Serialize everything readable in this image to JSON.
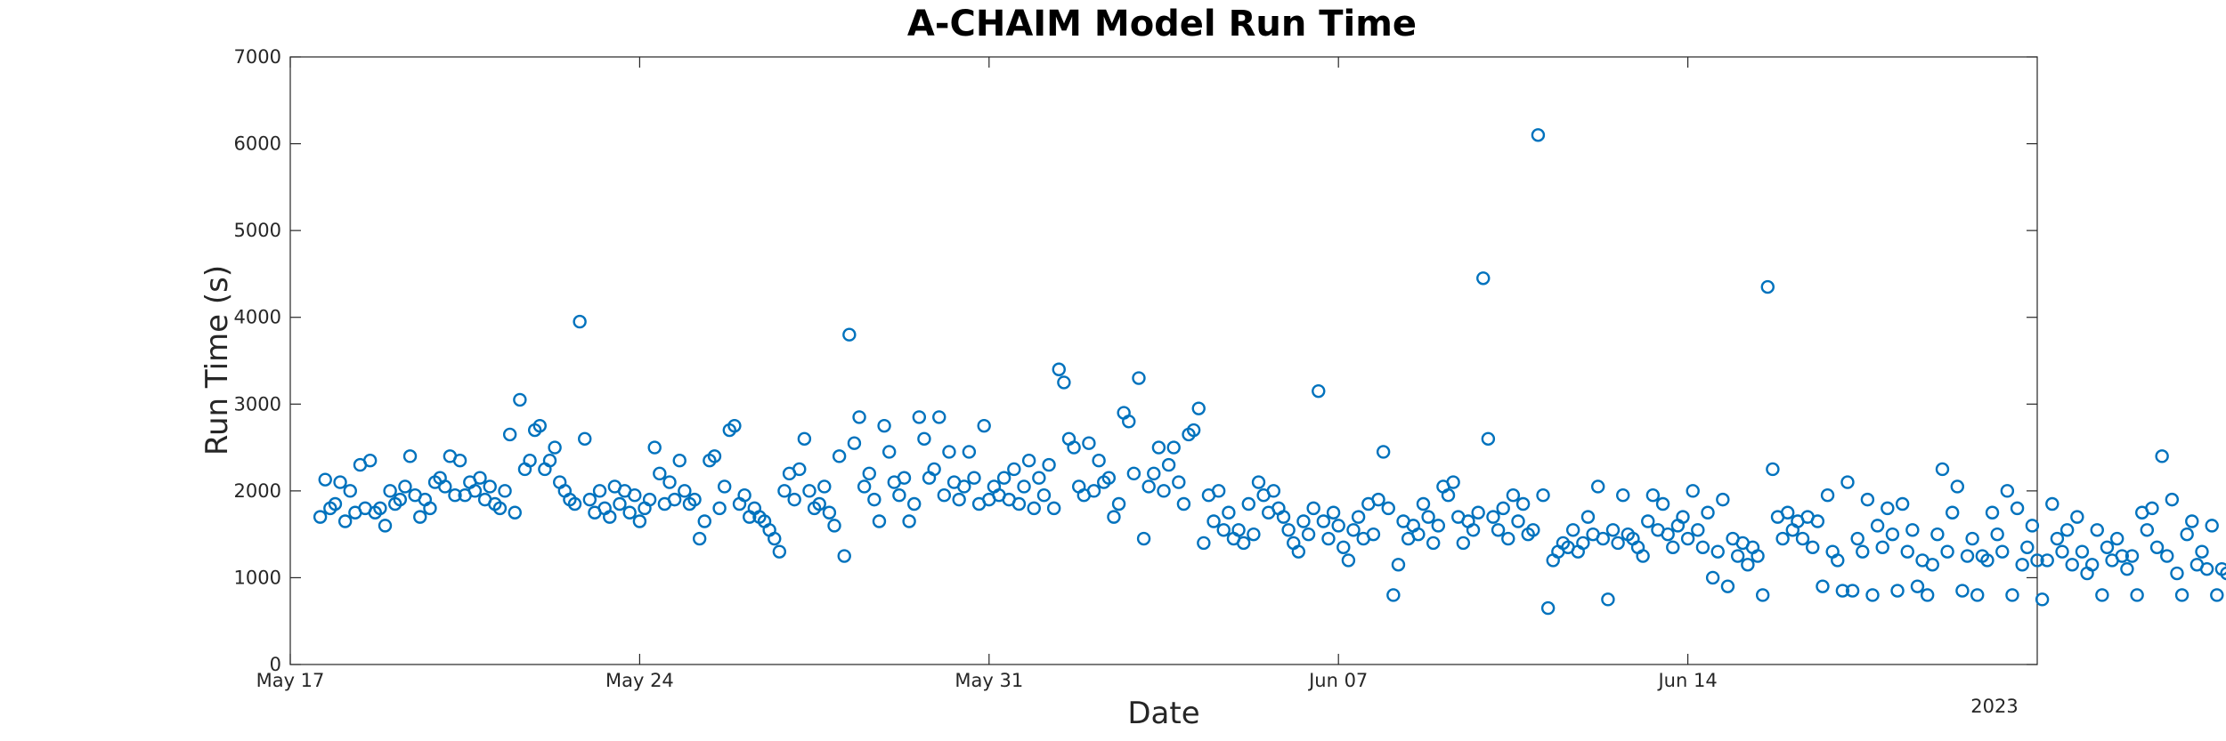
{
  "chart_data": {
    "type": "scatter",
    "title": "A-CHAIM Model Run Time",
    "xlabel": "Date",
    "ylabel": "Run Time (s)",
    "year_label": "2023",
    "xlim": [
      "2023-05-17",
      "2023-06-21"
    ],
    "ylim": [
      0,
      7000
    ],
    "x_ticks": [
      {
        "date": "2023-05-17",
        "label": "May 17"
      },
      {
        "date": "2023-05-24",
        "label": "May 24"
      },
      {
        "date": "2023-05-31",
        "label": "May 31"
      },
      {
        "date": "2023-06-07",
        "label": "Jun 07"
      },
      {
        "date": "2023-06-14",
        "label": "Jun 14"
      }
    ],
    "y_ticks": [
      0,
      1000,
      2000,
      3000,
      4000,
      5000,
      6000,
      7000
    ],
    "grid": false,
    "marker": "circle-open",
    "color": "#0072BD",
    "x_points_note_dates": "x values are day offsets from xlim start",
    "points": [
      [
        0.6,
        1700
      ],
      [
        0.7,
        2130
      ],
      [
        0.8,
        1800
      ],
      [
        0.9,
        1850
      ],
      [
        1.0,
        2100
      ],
      [
        1.1,
        1650
      ],
      [
        1.2,
        2000
      ],
      [
        1.3,
        1750
      ],
      [
        1.4,
        2300
      ],
      [
        1.5,
        1800
      ],
      [
        1.6,
        2350
      ],
      [
        1.7,
        1750
      ],
      [
        1.8,
        1800
      ],
      [
        1.9,
        1600
      ],
      [
        2.0,
        2000
      ],
      [
        2.1,
        1850
      ],
      [
        2.2,
        1900
      ],
      [
        2.3,
        2050
      ],
      [
        2.4,
        2400
      ],
      [
        2.5,
        1950
      ],
      [
        2.6,
        1700
      ],
      [
        2.7,
        1900
      ],
      [
        2.8,
        1800
      ],
      [
        2.9,
        2100
      ],
      [
        3.0,
        2150
      ],
      [
        3.1,
        2050
      ],
      [
        3.2,
        2400
      ],
      [
        3.3,
        1950
      ],
      [
        3.4,
        2350
      ],
      [
        3.5,
        1950
      ],
      [
        3.6,
        2100
      ],
      [
        3.7,
        2000
      ],
      [
        3.8,
        2150
      ],
      [
        3.9,
        1900
      ],
      [
        4.0,
        2050
      ],
      [
        4.1,
        1850
      ],
      [
        4.2,
        1800
      ],
      [
        4.3,
        2000
      ],
      [
        4.4,
        2650
      ],
      [
        4.5,
        1750
      ],
      [
        4.6,
        3050
      ],
      [
        4.7,
        2250
      ],
      [
        4.8,
        2350
      ],
      [
        4.9,
        2700
      ],
      [
        5.0,
        2750
      ],
      [
        5.1,
        2250
      ],
      [
        5.2,
        2350
      ],
      [
        5.3,
        2500
      ],
      [
        5.4,
        2100
      ],
      [
        5.5,
        2000
      ],
      [
        5.6,
        1900
      ],
      [
        5.7,
        1850
      ],
      [
        5.8,
        3950
      ],
      [
        5.9,
        2600
      ],
      [
        6.0,
        1900
      ],
      [
        6.1,
        1750
      ],
      [
        6.2,
        2000
      ],
      [
        6.3,
        1800
      ],
      [
        6.4,
        1700
      ],
      [
        6.5,
        2050
      ],
      [
        6.6,
        1850
      ],
      [
        6.7,
        2000
      ],
      [
        6.8,
        1750
      ],
      [
        6.9,
        1950
      ],
      [
        7.0,
        1650
      ],
      [
        7.1,
        1800
      ],
      [
        7.2,
        1900
      ],
      [
        7.3,
        2500
      ],
      [
        7.4,
        2200
      ],
      [
        7.5,
        1850
      ],
      [
        7.6,
        2100
      ],
      [
        7.7,
        1900
      ],
      [
        7.8,
        2350
      ],
      [
        7.9,
        2000
      ],
      [
        8.0,
        1850
      ],
      [
        8.1,
        1900
      ],
      [
        8.2,
        1450
      ],
      [
        8.3,
        1650
      ],
      [
        8.4,
        2350
      ],
      [
        8.5,
        2400
      ],
      [
        8.6,
        1800
      ],
      [
        8.7,
        2050
      ],
      [
        8.8,
        2700
      ],
      [
        8.9,
        2750
      ],
      [
        9.0,
        1850
      ],
      [
        9.1,
        1950
      ],
      [
        9.2,
        1700
      ],
      [
        9.3,
        1800
      ],
      [
        9.4,
        1700
      ],
      [
        9.5,
        1650
      ],
      [
        9.6,
        1550
      ],
      [
        9.7,
        1450
      ],
      [
        9.8,
        1300
      ],
      [
        9.9,
        2000
      ],
      [
        10.0,
        2200
      ],
      [
        10.1,
        1900
      ],
      [
        10.2,
        2250
      ],
      [
        10.3,
        2600
      ],
      [
        10.4,
        2000
      ],
      [
        10.5,
        1800
      ],
      [
        10.6,
        1850
      ],
      [
        10.7,
        2050
      ],
      [
        10.8,
        1750
      ],
      [
        10.9,
        1600
      ],
      [
        11.0,
        2400
      ],
      [
        11.1,
        1250
      ],
      [
        11.2,
        3800
      ],
      [
        11.3,
        2550
      ],
      [
        11.4,
        2850
      ],
      [
        11.5,
        2050
      ],
      [
        11.6,
        2200
      ],
      [
        11.7,
        1900
      ],
      [
        11.8,
        1650
      ],
      [
        11.9,
        2750
      ],
      [
        12.0,
        2450
      ],
      [
        12.1,
        2100
      ],
      [
        12.2,
        1950
      ],
      [
        12.3,
        2150
      ],
      [
        12.4,
        1650
      ],
      [
        12.5,
        1850
      ],
      [
        12.6,
        2850
      ],
      [
        12.7,
        2600
      ],
      [
        12.8,
        2150
      ],
      [
        12.9,
        2250
      ],
      [
        13.0,
        2850
      ],
      [
        13.1,
        1950
      ],
      [
        13.2,
        2450
      ],
      [
        13.3,
        2100
      ],
      [
        13.4,
        1900
      ],
      [
        13.5,
        2050
      ],
      [
        13.6,
        2450
      ],
      [
        13.7,
        2150
      ],
      [
        13.8,
        1850
      ],
      [
        13.9,
        2750
      ],
      [
        14.0,
        1900
      ],
      [
        14.1,
        2050
      ],
      [
        14.2,
        1950
      ],
      [
        14.3,
        2150
      ],
      [
        14.4,
        1900
      ],
      [
        14.5,
        2250
      ],
      [
        14.6,
        1850
      ],
      [
        14.7,
        2050
      ],
      [
        14.8,
        2350
      ],
      [
        14.9,
        1800
      ],
      [
        15.0,
        2150
      ],
      [
        15.1,
        1950
      ],
      [
        15.2,
        2300
      ],
      [
        15.3,
        1800
      ],
      [
        15.4,
        3400
      ],
      [
        15.5,
        3250
      ],
      [
        15.6,
        2600
      ],
      [
        15.7,
        2500
      ],
      [
        15.8,
        2050
      ],
      [
        15.9,
        1950
      ],
      [
        16.0,
        2550
      ],
      [
        16.1,
        2000
      ],
      [
        16.2,
        2350
      ],
      [
        16.3,
        2100
      ],
      [
        16.4,
        2150
      ],
      [
        16.5,
        1700
      ],
      [
        16.6,
        1850
      ],
      [
        16.7,
        2900
      ],
      [
        16.8,
        2800
      ],
      [
        16.9,
        2200
      ],
      [
        17.0,
        3300
      ],
      [
        17.1,
        1450
      ],
      [
        17.2,
        2050
      ],
      [
        17.3,
        2200
      ],
      [
        17.4,
        2500
      ],
      [
        17.5,
        2000
      ],
      [
        17.6,
        2300
      ],
      [
        17.7,
        2500
      ],
      [
        17.8,
        2100
      ],
      [
        17.9,
        1850
      ],
      [
        18.0,
        2650
      ],
      [
        18.1,
        2700
      ],
      [
        18.2,
        2950
      ],
      [
        18.3,
        1400
      ],
      [
        18.4,
        1950
      ],
      [
        18.5,
        1650
      ],
      [
        18.6,
        2000
      ],
      [
        18.7,
        1550
      ],
      [
        18.8,
        1750
      ],
      [
        18.9,
        1450
      ],
      [
        19.0,
        1550
      ],
      [
        19.1,
        1400
      ],
      [
        19.2,
        1850
      ],
      [
        19.3,
        1500
      ],
      [
        19.4,
        2100
      ],
      [
        19.5,
        1950
      ],
      [
        19.6,
        1750
      ],
      [
        19.7,
        2000
      ],
      [
        19.8,
        1800
      ],
      [
        19.9,
        1700
      ],
      [
        20.0,
        1550
      ],
      [
        20.1,
        1400
      ],
      [
        20.2,
        1300
      ],
      [
        20.3,
        1650
      ],
      [
        20.4,
        1500
      ],
      [
        20.5,
        1800
      ],
      [
        20.6,
        3150
      ],
      [
        20.7,
        1650
      ],
      [
        20.8,
        1450
      ],
      [
        20.9,
        1750
      ],
      [
        21.0,
        1600
      ],
      [
        21.1,
        1350
      ],
      [
        21.2,
        1200
      ],
      [
        21.3,
        1550
      ],
      [
        21.4,
        1700
      ],
      [
        21.5,
        1450
      ],
      [
        21.6,
        1850
      ],
      [
        21.7,
        1500
      ],
      [
        21.8,
        1900
      ],
      [
        21.9,
        2450
      ],
      [
        22.0,
        1800
      ],
      [
        22.1,
        800
      ],
      [
        22.2,
        1150
      ],
      [
        22.3,
        1650
      ],
      [
        22.4,
        1450
      ],
      [
        22.5,
        1600
      ],
      [
        22.6,
        1500
      ],
      [
        22.7,
        1850
      ],
      [
        22.8,
        1700
      ],
      [
        22.9,
        1400
      ],
      [
        23.0,
        1600
      ],
      [
        23.1,
        2050
      ],
      [
        23.2,
        1950
      ],
      [
        23.3,
        2100
      ],
      [
        23.4,
        1700
      ],
      [
        23.5,
        1400
      ],
      [
        23.6,
        1650
      ],
      [
        23.7,
        1550
      ],
      [
        23.8,
        1750
      ],
      [
        23.9,
        4450
      ],
      [
        24.0,
        2600
      ],
      [
        24.1,
        1700
      ],
      [
        24.2,
        1550
      ],
      [
        24.3,
        1800
      ],
      [
        24.4,
        1450
      ],
      [
        24.5,
        1950
      ],
      [
        24.6,
        1650
      ],
      [
        24.7,
        1850
      ],
      [
        24.8,
        1500
      ],
      [
        24.9,
        1550
      ],
      [
        25.0,
        6100
      ],
      [
        25.1,
        1950
      ],
      [
        25.2,
        650
      ],
      [
        25.3,
        1200
      ],
      [
        25.4,
        1300
      ],
      [
        25.5,
        1400
      ],
      [
        25.6,
        1350
      ],
      [
        25.7,
        1550
      ],
      [
        25.8,
        1300
      ],
      [
        25.9,
        1400
      ],
      [
        26.0,
        1700
      ],
      [
        26.1,
        1500
      ],
      [
        26.2,
        2050
      ],
      [
        26.3,
        1450
      ],
      [
        26.4,
        750
      ],
      [
        26.5,
        1550
      ],
      [
        26.6,
        1400
      ],
      [
        26.7,
        1950
      ],
      [
        26.8,
        1500
      ],
      [
        26.9,
        1450
      ],
      [
        27.0,
        1350
      ],
      [
        27.1,
        1250
      ],
      [
        27.2,
        1650
      ],
      [
        27.3,
        1950
      ],
      [
        27.4,
        1550
      ],
      [
        27.5,
        1850
      ],
      [
        27.6,
        1500
      ],
      [
        27.7,
        1350
      ],
      [
        27.8,
        1600
      ],
      [
        27.9,
        1700
      ],
      [
        28.0,
        1450
      ],
      [
        28.1,
        2000
      ],
      [
        28.2,
        1550
      ],
      [
        28.3,
        1350
      ],
      [
        28.4,
        1750
      ],
      [
        28.5,
        1000
      ],
      [
        28.6,
        1300
      ],
      [
        28.7,
        1900
      ],
      [
        28.8,
        900
      ],
      [
        28.9,
        1450
      ],
      [
        29.0,
        1250
      ],
      [
        29.1,
        1400
      ],
      [
        29.2,
        1150
      ],
      [
        29.3,
        1350
      ],
      [
        29.4,
        1250
      ],
      [
        29.5,
        800
      ],
      [
        29.6,
        4350
      ],
      [
        29.7,
        2250
      ],
      [
        29.8,
        1700
      ],
      [
        29.9,
        1450
      ],
      [
        30.0,
        1750
      ],
      [
        30.1,
        1550
      ],
      [
        30.2,
        1650
      ],
      [
        30.3,
        1450
      ],
      [
        30.4,
        1700
      ],
      [
        30.5,
        1350
      ],
      [
        30.6,
        1650
      ],
      [
        30.7,
        900
      ],
      [
        30.8,
        1950
      ],
      [
        30.9,
        1300
      ],
      [
        31.0,
        1200
      ],
      [
        31.1,
        850
      ],
      [
        31.2,
        2100
      ],
      [
        31.3,
        850
      ],
      [
        31.4,
        1450
      ],
      [
        31.5,
        1300
      ],
      [
        31.6,
        1900
      ],
      [
        31.7,
        800
      ],
      [
        31.8,
        1600
      ],
      [
        31.9,
        1350
      ],
      [
        32.0,
        1800
      ],
      [
        32.1,
        1500
      ],
      [
        32.2,
        850
      ],
      [
        32.3,
        1850
      ],
      [
        32.4,
        1300
      ],
      [
        32.5,
        1550
      ],
      [
        32.6,
        900
      ],
      [
        32.7,
        1200
      ],
      [
        32.8,
        800
      ],
      [
        32.9,
        1150
      ],
      [
        33.0,
        1500
      ],
      [
        33.1,
        2250
      ],
      [
        33.2,
        1300
      ],
      [
        33.3,
        1750
      ],
      [
        33.4,
        2050
      ],
      [
        33.5,
        850
      ],
      [
        33.6,
        1250
      ],
      [
        33.7,
        1450
      ],
      [
        33.8,
        800
      ],
      [
        33.9,
        1250
      ],
      [
        34.0,
        1200
      ],
      [
        34.1,
        1750
      ],
      [
        34.2,
        1500
      ],
      [
        34.3,
        1300
      ],
      [
        34.4,
        2000
      ],
      [
        34.5,
        800
      ],
      [
        34.6,
        1800
      ],
      [
        34.7,
        1150
      ],
      [
        34.8,
        1350
      ],
      [
        34.9,
        1600
      ],
      [
        35.0,
        1200
      ],
      [
        35.1,
        750
      ],
      [
        35.2,
        1200
      ],
      [
        35.3,
        1850
      ],
      [
        35.4,
        1450
      ],
      [
        35.5,
        1300
      ],
      [
        35.6,
        1550
      ],
      [
        35.7,
        1150
      ],
      [
        35.8,
        1700
      ],
      [
        35.9,
        1300
      ],
      [
        36.0,
        1050
      ],
      [
        36.1,
        1150
      ],
      [
        36.2,
        1550
      ],
      [
        36.3,
        800
      ],
      [
        36.4,
        1350
      ],
      [
        36.5,
        1200
      ],
      [
        36.6,
        1450
      ],
      [
        36.7,
        1250
      ],
      [
        36.8,
        1100
      ],
      [
        36.9,
        1250
      ],
      [
        37.0,
        800
      ],
      [
        37.1,
        1750
      ],
      [
        37.2,
        1550
      ],
      [
        37.3,
        1800
      ],
      [
        37.4,
        1350
      ],
      [
        37.5,
        2400
      ],
      [
        37.6,
        1250
      ],
      [
        37.7,
        1900
      ],
      [
        37.8,
        1050
      ],
      [
        37.9,
        800
      ],
      [
        38.0,
        1500
      ],
      [
        38.1,
        1650
      ],
      [
        38.2,
        1150
      ],
      [
        38.3,
        1300
      ],
      [
        38.4,
        1100
      ],
      [
        38.5,
        1600
      ],
      [
        38.6,
        800
      ],
      [
        38.7,
        1100
      ],
      [
        38.8,
        1050
      ]
    ]
  }
}
